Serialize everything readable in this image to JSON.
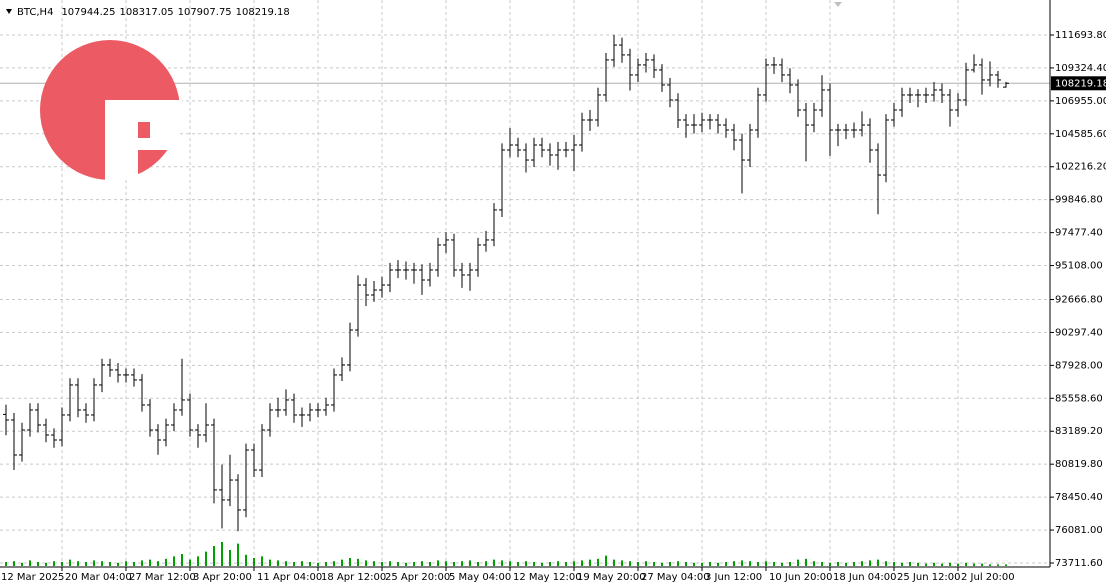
{
  "symbol": "BTC,H4",
  "chart_data": {
    "type": "ohlc",
    "categories": [
      "12 Mar 2025",
      null,
      null,
      null,
      null,
      null,
      null,
      null,
      "20 Mar 04:00",
      null,
      null,
      null,
      null,
      null,
      null,
      null,
      "27 Mar 12:00",
      null,
      null,
      null,
      null,
      null,
      null,
      null,
      "3 Apr 20:00",
      null,
      null,
      null,
      null,
      null,
      null,
      null,
      "11 Apr 04:00",
      null,
      null,
      null,
      null,
      null,
      null,
      null,
      "18 Apr 12:00",
      null,
      null,
      null,
      null,
      null,
      null,
      null,
      "25 Apr 20:00",
      null,
      null,
      null,
      null,
      null,
      null,
      null,
      "5 May 04:00",
      null,
      null,
      null,
      null,
      null,
      null,
      null,
      "12 May 12:00",
      null,
      null,
      null,
      null,
      null,
      null,
      null,
      "19 May 20:00",
      null,
      null,
      null,
      null,
      null,
      null,
      null,
      "27 May 04:00",
      null,
      null,
      null,
      null,
      null,
      null,
      null,
      "3 Jun 12:00",
      null,
      null,
      null,
      null,
      null,
      null,
      null,
      "10 Jun 20:00",
      null,
      null,
      null,
      null,
      null,
      null,
      null,
      "18 Jun 04:00",
      null,
      null,
      null,
      null,
      null,
      null,
      null,
      "25 Jun 12:00",
      null,
      null,
      null,
      null,
      null,
      null,
      null,
      "2 Jul 20:00",
      null,
      null,
      null,
      null,
      null
    ],
    "open": [
      84400,
      84000,
      81480,
      83280,
      84720,
      83640,
      82920,
      82560,
      84360,
      86520,
      84720,
      84360,
      86520,
      87960,
      87600,
      87240,
      87240,
      86880,
      85080,
      83280,
      82560,
      83640,
      84720,
      85440,
      83280,
      82920,
      83640,
      78970,
      78250,
      79680,
      77530,
      81840,
      80400,
      83280,
      84720,
      84720,
      85440,
      84360,
      84360,
      84720,
      84720,
      85080,
      87240,
      87960,
      90470,
      93710,
      92990,
      93350,
      93710,
      94790,
      94790,
      94790,
      94790,
      94070,
      94790,
      96590,
      96950,
      94790,
      94430,
      94790,
      96590,
      96950,
      99110,
      103420,
      103780,
      103420,
      102700,
      103780,
      103420,
      103060,
      103420,
      103420,
      103780,
      105580,
      105580,
      107380,
      109900,
      110970,
      110260,
      108820,
      109540,
      109900,
      109180,
      108100,
      107020,
      105580,
      105220,
      105220,
      105580,
      105580,
      105220,
      104860,
      104140,
      102700,
      104860,
      107380,
      109540,
      109540,
      108820,
      108100,
      106300,
      105220,
      106300,
      107740,
      104860,
      104860,
      104860,
      104860,
      105220,
      103420,
      101620,
      105580,
      106300,
      107380,
      107380,
      107380,
      107380,
      107740,
      107380,
      106300,
      107020,
      109180,
      109540,
      108460,
      108820,
      107944.25
    ],
    "high": [
      85100,
      84500,
      83800,
      85200,
      85200,
      84100,
      83400,
      84900,
      87000,
      87000,
      85200,
      87000,
      88400,
      88400,
      88100,
      87700,
      87700,
      87300,
      85500,
      83700,
      84100,
      85200,
      88400,
      85900,
      83700,
      85200,
      84100,
      80800,
      81500,
      80100,
      82300,
      82300,
      83700,
      85200,
      85600,
      86200,
      85900,
      84900,
      85200,
      85200,
      85600,
      87700,
      88500,
      91000,
      94400,
      94200,
      94000,
      94300,
      95300,
      95500,
      95400,
      95300,
      95200,
      95300,
      97100,
      97500,
      97400,
      95300,
      95300,
      97100,
      97600,
      99600,
      103900,
      105000,
      104300,
      103900,
      104300,
      104300,
      103900,
      104000,
      104000,
      104500,
      106100,
      106300,
      107900,
      110400,
      111700,
      111500,
      110700,
      110000,
      110400,
      110300,
      109600,
      108600,
      107500,
      106000,
      106000,
      106100,
      106000,
      106000,
      105700,
      105300,
      104600,
      105300,
      107900,
      110000,
      110100,
      110000,
      109300,
      108500,
      106800,
      106800,
      108800,
      108200,
      105300,
      105300,
      105400,
      106200,
      105700,
      103900,
      106000,
      106800,
      107900,
      107900,
      107800,
      107900,
      108300,
      108200,
      107800,
      107500,
      109700,
      110300,
      110000,
      109800,
      109100,
      108317.05
    ],
    "low": [
      82900,
      80400,
      81000,
      82800,
      83100,
      82400,
      82000,
      82100,
      83900,
      84200,
      83800,
      83900,
      86000,
      87100,
      86700,
      86700,
      86400,
      84600,
      82800,
      81500,
      82100,
      83200,
      84300,
      82800,
      82000,
      82400,
      78000,
      76200,
      77800,
      76000,
      77000,
      79900,
      79900,
      82800,
      84200,
      84300,
      83800,
      83500,
      83900,
      84200,
      84300,
      84600,
      86800,
      87500,
      90000,
      92200,
      92500,
      92800,
      93200,
      94200,
      94100,
      93800,
      93000,
      93600,
      94300,
      96000,
      94300,
      93500,
      93300,
      94300,
      96100,
      96500,
      98600,
      102900,
      102900,
      101800,
      102200,
      102900,
      102300,
      102000,
      102900,
      101900,
      103300,
      104800,
      105100,
      106900,
      109400,
      109700,
      107700,
      108300,
      109000,
      108600,
      107600,
      106500,
      105000,
      104300,
      104600,
      104700,
      104900,
      104600,
      104300,
      103400,
      100300,
      102200,
      104300,
      106900,
      108900,
      108300,
      107500,
      105800,
      102600,
      104700,
      105800,
      103000,
      103700,
      104200,
      104300,
      104400,
      102500,
      98800,
      101100,
      105100,
      105800,
      106800,
      106500,
      106800,
      106900,
      106800,
      105100,
      105800,
      106600,
      109000,
      107400,
      108000,
      107900,
      107907.75
    ],
    "close": [
      84000,
      81480,
      83280,
      84720,
      83640,
      82920,
      82560,
      84360,
      86520,
      84720,
      84360,
      86520,
      87960,
      87600,
      87240,
      87240,
      86880,
      85080,
      83280,
      82560,
      83640,
      84720,
      85440,
      83280,
      82920,
      83640,
      78970,
      78250,
      79680,
      77530,
      81840,
      80400,
      83280,
      84720,
      84720,
      85440,
      84360,
      84360,
      84720,
      84720,
      85080,
      87240,
      87960,
      90470,
      93710,
      92990,
      93350,
      93710,
      94790,
      94790,
      94790,
      94790,
      94070,
      94790,
      96590,
      96950,
      94790,
      94430,
      94790,
      96590,
      96950,
      99110,
      103420,
      103780,
      103420,
      102700,
      103780,
      103420,
      103060,
      103420,
      103420,
      103780,
      105580,
      105580,
      107380,
      109900,
      110970,
      110260,
      108820,
      109540,
      109900,
      109180,
      108100,
      107020,
      105580,
      105220,
      105220,
      105580,
      105580,
      105220,
      104860,
      104140,
      102700,
      104860,
      107380,
      109540,
      109540,
      108820,
      108100,
      106300,
      105220,
      106300,
      107740,
      104860,
      104860,
      104860,
      104860,
      105220,
      103420,
      101620,
      105580,
      106300,
      107380,
      107380,
      107380,
      107380,
      107740,
      107380,
      106300,
      107020,
      109180,
      109540,
      108460,
      108820,
      108460,
      108219.18
    ],
    "volume": [
      5,
      6,
      4,
      7,
      5,
      4,
      6,
      5,
      8,
      6,
      5,
      7,
      6,
      5,
      4,
      6,
      5,
      7,
      8,
      6,
      9,
      12,
      15,
      8,
      12,
      18,
      25,
      30,
      20,
      28,
      14,
      10,
      12,
      8,
      7,
      6,
      5,
      6,
      5,
      4,
      5,
      6,
      8,
      10,
      9,
      7,
      6,
      5,
      6,
      5,
      4,
      5,
      6,
      5,
      7,
      6,
      5,
      6,
      7,
      5,
      6,
      8,
      7,
      6,
      5,
      6,
      5,
      4,
      5,
      6,
      5,
      6,
      7,
      8,
      9,
      13,
      8,
      7,
      6,
      5,
      6,
      5,
      4,
      5,
      6,
      5,
      4,
      4,
      5,
      4,
      5,
      6,
      7,
      6,
      5,
      6,
      5,
      4,
      5,
      8,
      9,
      6,
      5,
      4,
      5,
      4,
      5,
      6,
      7,
      8,
      6,
      5,
      4,
      5,
      4,
      3,
      4,
      3,
      4,
      3,
      4,
      3,
      3,
      2,
      2,
      2
    ],
    "color": "#000000",
    "volume_color": "#00a000",
    "ylim": [
      73424,
      114211
    ],
    "yticks": [
      {
        "value": 73711.6,
        "label": "73711.60"
      },
      {
        "value": 76081,
        "label": "76081.00"
      },
      {
        "value": 78450.4,
        "label": "78450.40"
      },
      {
        "value": 80819.8,
        "label": "80819.80"
      },
      {
        "value": 83189.2,
        "label": "83189.20"
      },
      {
        "value": 85558.6,
        "label": "85558.60"
      },
      {
        "value": 87928,
        "label": "87928.00"
      },
      {
        "value": 90297.4,
        "label": "90297.40"
      },
      {
        "value": 92666.8,
        "label": "92666.80"
      },
      {
        "value": 95108,
        "label": "95108.00"
      },
      {
        "value": 97477.4,
        "label": "97477.40"
      },
      {
        "value": 99846.8,
        "label": "99846.80"
      },
      {
        "value": 102216.2,
        "label": "102216.20"
      },
      {
        "value": 104585.6,
        "label": "104585.60"
      },
      {
        "value": 106955,
        "label": "106955.00"
      },
      {
        "value": 109324.4,
        "label": "109324.40"
      },
      {
        "value": 111693.8,
        "label": "111693.80"
      }
    ],
    "grid": true
  }
}
